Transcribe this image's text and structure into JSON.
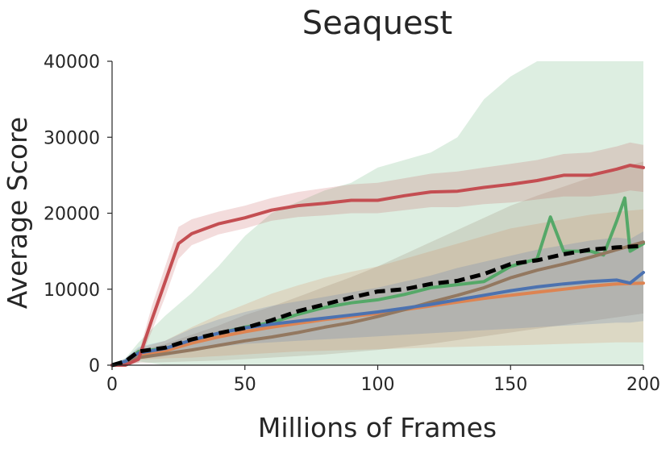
{
  "chart_data": {
    "type": "line",
    "title": "Seaquest",
    "xlabel": "Millions of Frames",
    "ylabel": "Average Score",
    "xlim": [
      0,
      200
    ],
    "ylim": [
      0,
      40000
    ],
    "xticks": [
      0,
      50,
      100,
      150,
      200
    ],
    "yticks": [
      0,
      10000,
      20000,
      30000,
      40000
    ],
    "grid": false,
    "legend": "none",
    "bands": "shaded min-max range around each series",
    "series": [
      {
        "color": "#55a868",
        "style": "solid",
        "x": [
          0,
          5,
          10,
          20,
          30,
          40,
          50,
          60,
          70,
          80,
          90,
          100,
          110,
          120,
          130,
          140,
          150,
          160,
          165,
          170,
          180,
          185,
          190,
          193,
          195,
          200
        ],
        "y": [
          0,
          500,
          1800,
          2200,
          3200,
          4200,
          5000,
          5600,
          6700,
          7600,
          8200,
          8600,
          9300,
          10200,
          10600,
          11000,
          13000,
          14000,
          19500,
          15000,
          15000,
          14500,
          19000,
          22000,
          15000,
          16000
        ],
        "y_low": [
          0,
          0,
          500,
          0,
          0,
          0,
          0,
          0,
          0,
          0,
          0,
          0,
          0,
          0,
          0,
          0,
          0,
          0,
          0,
          0,
          0,
          0,
          0,
          0,
          0,
          0
        ],
        "y_high": [
          200,
          900,
          3000,
          6500,
          9500,
          13000,
          17000,
          20000,
          21500,
          23000,
          24000,
          26000,
          27000,
          28000,
          30000,
          35000,
          38000,
          40000,
          40000,
          40000,
          40000,
          40000,
          40000,
          40000,
          40000,
          40000
        ]
      },
      {
        "color": "#dd8452",
        "style": "solid",
        "x": [
          0,
          5,
          10,
          20,
          30,
          40,
          50,
          60,
          70,
          80,
          90,
          100,
          110,
          120,
          130,
          140,
          150,
          160,
          170,
          180,
          190,
          200
        ],
        "y": [
          0,
          400,
          1400,
          1900,
          2900,
          3700,
          4400,
          5000,
          5500,
          6000,
          6400,
          6800,
          7300,
          7800,
          8300,
          8800,
          9200,
          9600,
          10000,
          10400,
          10700,
          10800
        ],
        "y_low": [
          0,
          100,
          700,
          900,
          1000,
          1200,
          1400,
          1600,
          1800,
          1900,
          2000,
          2100,
          2200,
          2300,
          2400,
          2500,
          2600,
          2700,
          2800,
          2900,
          3000,
          3000
        ],
        "y_high": [
          100,
          800,
          2200,
          3200,
          5000,
          6600,
          8000,
          9400,
          10500,
          11500,
          12300,
          13000,
          14000,
          15000,
          16000,
          17000,
          18000,
          18600,
          19200,
          19800,
          20200,
          20500
        ]
      },
      {
        "color": "#937860",
        "style": "solid",
        "x": [
          0,
          5,
          10,
          20,
          30,
          40,
          50,
          60,
          70,
          80,
          90,
          100,
          110,
          120,
          130,
          140,
          150,
          160,
          170,
          180,
          190,
          200
        ],
        "y": [
          0,
          300,
          1000,
          1500,
          2000,
          2600,
          3200,
          3700,
          4300,
          5000,
          5600,
          6400,
          7300,
          8300,
          9200,
          10200,
          11500,
          12500,
          13300,
          14200,
          15200,
          16200
        ],
        "y_low": [
          0,
          50,
          300,
          400,
          500,
          600,
          800,
          1000,
          1200,
          1400,
          1700,
          2000,
          2400,
          2800,
          3300,
          3800,
          4300,
          4800,
          5300,
          5800,
          6300,
          6800
        ],
        "y_high": [
          100,
          700,
          1800,
          2800,
          4000,
          5200,
          6600,
          7700,
          9000,
          10300,
          11600,
          13000,
          14600,
          16200,
          17800,
          19400,
          21000,
          22300,
          23500,
          24700,
          25800,
          26800
        ]
      },
      {
        "color": "#4c72b0",
        "style": "solid",
        "x": [
          0,
          5,
          10,
          20,
          30,
          40,
          50,
          60,
          70,
          80,
          90,
          100,
          110,
          120,
          130,
          140,
          150,
          160,
          170,
          180,
          190,
          195,
          200
        ],
        "y": [
          0,
          500,
          1600,
          2200,
          3300,
          4200,
          4900,
          5400,
          5800,
          6200,
          6600,
          7000,
          7500,
          8000,
          8600,
          9200,
          9800,
          10300,
          10700,
          11000,
          11200,
          10800,
          12200
        ],
        "y_low": [
          0,
          100,
          800,
          1200,
          1800,
          2400,
          2800,
          3000,
          3200,
          3400,
          3600,
          3800,
          4000,
          4200,
          4400,
          4600,
          4800,
          5000,
          5200,
          5400,
          5600,
          5600,
          5800
        ],
        "y_high": [
          100,
          900,
          2400,
          3200,
          4800,
          6000,
          7000,
          7800,
          8400,
          9000,
          9600,
          10200,
          11000,
          11800,
          12800,
          13600,
          14400,
          15200,
          15800,
          16400,
          16800,
          16600,
          17600
        ]
      },
      {
        "color": "#c44e52",
        "style": "solid",
        "x": [
          0,
          5,
          10,
          15,
          20,
          25,
          30,
          40,
          50,
          60,
          70,
          80,
          90,
          100,
          110,
          120,
          130,
          140,
          150,
          160,
          170,
          180,
          190,
          195,
          200
        ],
        "y": [
          0,
          0,
          800,
          6000,
          11000,
          16000,
          17300,
          18600,
          19400,
          20400,
          21000,
          21300,
          21700,
          21700,
          22300,
          22800,
          22900,
          23400,
          23800,
          24300,
          25000,
          25000,
          25800,
          26300,
          26000
        ],
        "y_low": [
          0,
          0,
          300,
          4500,
          9000,
          14000,
          15800,
          17200,
          18000,
          19000,
          19500,
          19700,
          20000,
          20000,
          20400,
          20800,
          20800,
          21200,
          21400,
          21800,
          22200,
          22200,
          22600,
          23000,
          22800
        ],
        "y_high": [
          0,
          100,
          1500,
          7800,
          13000,
          18200,
          19200,
          20200,
          21000,
          22000,
          22800,
          23300,
          23800,
          24000,
          24600,
          25200,
          25500,
          26000,
          26500,
          27000,
          27800,
          28000,
          28800,
          29300,
          29000
        ]
      },
      {
        "color": "#000000",
        "style": "dashed",
        "x": [
          0,
          5,
          10,
          20,
          30,
          40,
          50,
          60,
          70,
          80,
          90,
          100,
          110,
          120,
          130,
          140,
          150,
          160,
          170,
          180,
          190,
          200
        ],
        "y": [
          0,
          500,
          1800,
          2300,
          3400,
          4200,
          4900,
          5900,
          7100,
          8000,
          8900,
          9700,
          10000,
          10700,
          11100,
          12000,
          13300,
          13800,
          14600,
          15200,
          15500,
          15700
        ]
      }
    ]
  }
}
